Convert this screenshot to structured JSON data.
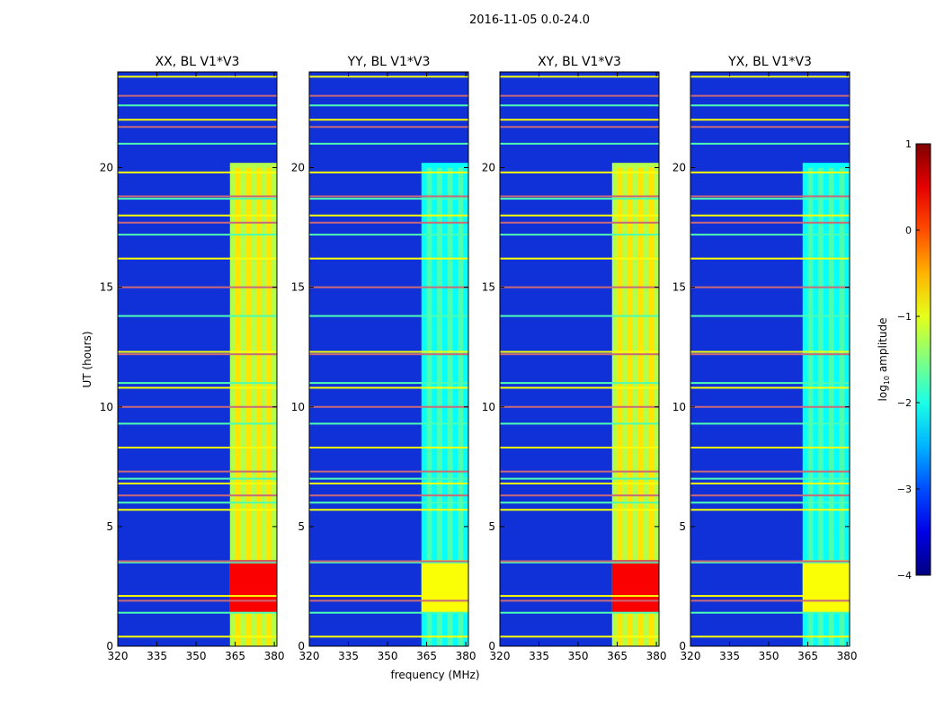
{
  "chart_data": {
    "type": "heatmap",
    "suptitle": "2016-11-05 0.0-24.0",
    "xlabel": "frequency (MHz)",
    "ylabel": "UT (hours)",
    "xlim": [
      320,
      381
    ],
    "ylim": [
      0,
      24
    ],
    "xticks": [
      "320",
      "335",
      "350",
      "365",
      "380"
    ],
    "yticks": [
      "0",
      "5",
      "10",
      "15",
      "20"
    ],
    "panels": [
      {
        "title": "XX, BL V1*V3",
        "level": "high"
      },
      {
        "title": "YY, BL V1*V3",
        "level": "low"
      },
      {
        "title": "XY, BL V1*V3",
        "level": "high"
      },
      {
        "title": "YX, BL V1*V3",
        "level": "low"
      }
    ],
    "colorbar": {
      "label": "log10 amplitude",
      "label_main": "log",
      "label_sub": "10",
      "label_rest": " amplitude",
      "range": [
        -4,
        1
      ],
      "ticks": [
        "−4",
        "−3",
        "−2",
        "−1",
        "0",
        "1"
      ],
      "colormap": "jet"
    },
    "rfi_band_mhz": [
      363,
      382
    ],
    "strong_emission_ut": [
      1.4,
      3.6
    ],
    "flagged_rows_ut": [
      0.4,
      1.4,
      1.9,
      2.1,
      3.5,
      3.55,
      5.7,
      6.0,
      6.3,
      6.8,
      7.0,
      7.3,
      8.3,
      9.3,
      10.0,
      10.8,
      11.0,
      12.2,
      12.3,
      13.8,
      15.0,
      16.2,
      17.2,
      17.7,
      18.0,
      18.7,
      18.8,
      19.8,
      21.0,
      21.7,
      22.0,
      22.6,
      23.0,
      23.8
    ]
  }
}
